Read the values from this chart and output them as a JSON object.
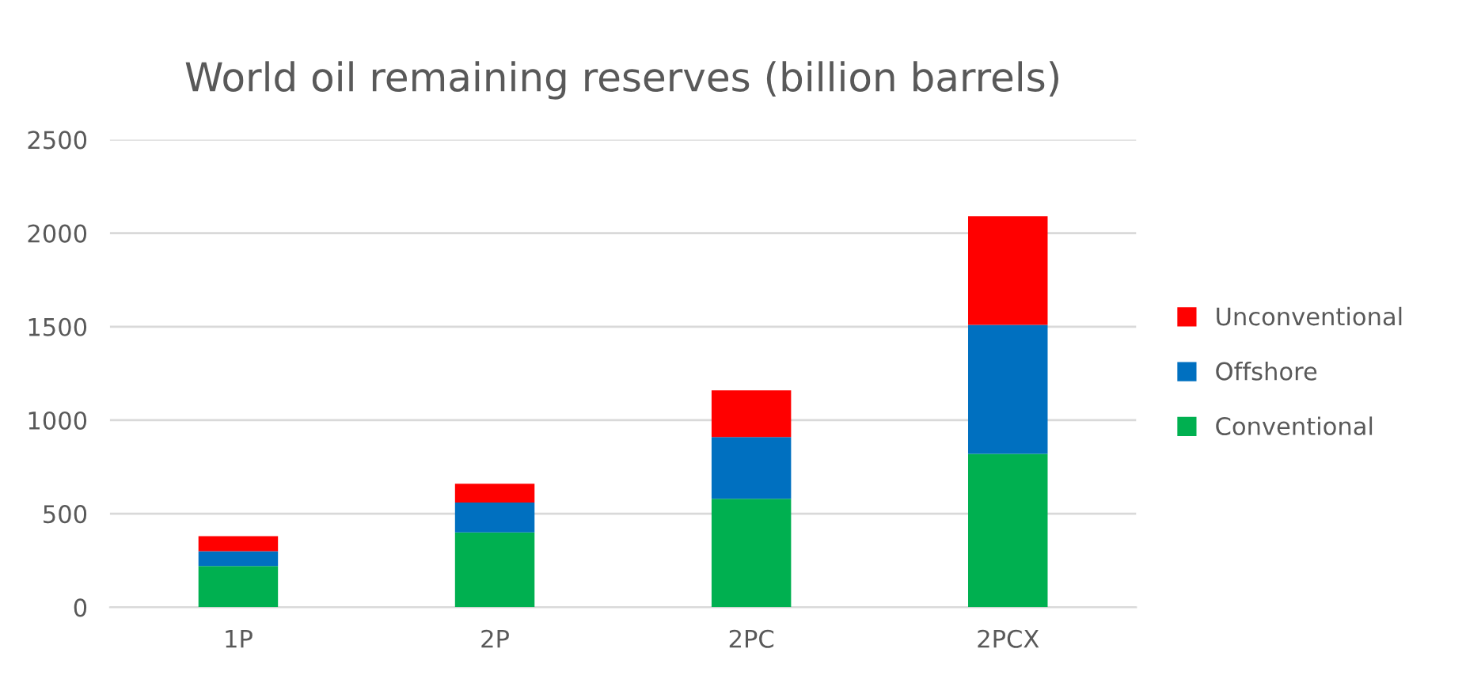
{
  "chart_data": {
    "type": "bar",
    "title": "World oil remaining reserves (billion barrels)",
    "stacked": true,
    "categories": [
      "1P",
      "2P",
      "2PC",
      "2PCX"
    ],
    "series": [
      {
        "name": "Conventional",
        "color": "#00b050",
        "values": [
          220,
          400,
          580,
          820
        ]
      },
      {
        "name": "Offshore",
        "color": "#0070c0",
        "values": [
          80,
          160,
          330,
          690
        ]
      },
      {
        "name": "Unconventional",
        "color": "#ff0000",
        "values": [
          80,
          100,
          250,
          580
        ]
      }
    ],
    "ylim": [
      0,
      2500
    ],
    "yticks": [
      0,
      500,
      1000,
      1500,
      2000,
      2500
    ],
    "grid": "y",
    "legend": "right"
  }
}
